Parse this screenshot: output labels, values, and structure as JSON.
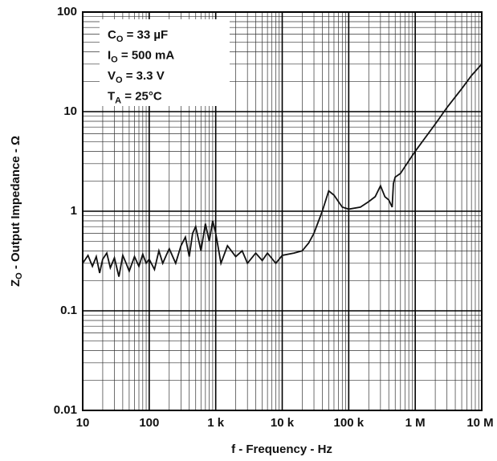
{
  "chart_data": {
    "type": "line",
    "xlabel": "f - Frequency - Hz",
    "ylabel": [
      "Z",
      "O",
      " - Output Impedance - Ω"
    ],
    "annotations": [
      [
        "C",
        "O",
        " = 33 µF"
      ],
      [
        "I",
        "O",
        " = 500 mA"
      ],
      [
        "V",
        "O",
        " = 3.3 V"
      ],
      [
        "T",
        "A",
        " = 25°C"
      ]
    ],
    "xlog": true,
    "ylog": true,
    "grid": true,
    "xlim": [
      10,
      10000000
    ],
    "ylim": [
      0.01,
      100
    ],
    "xticks": [
      10,
      100,
      {
        "value": 1000,
        "label": "1 k"
      },
      {
        "value": 10000,
        "label": "10 k"
      },
      {
        "value": 100000,
        "label": "100 k"
      },
      {
        "value": 1000000,
        "label": "1 M"
      },
      {
        "value": 10000000,
        "label": "10 M"
      }
    ],
    "yticks": [
      0.01,
      0.1,
      1,
      10,
      100
    ],
    "x": [
      10,
      12,
      14,
      16,
      18,
      20,
      23,
      26,
      30,
      35,
      40,
      45,
      50,
      60,
      70,
      80,
      90,
      100,
      120,
      140,
      160,
      180,
      200,
      250,
      300,
      350,
      400,
      450,
      500,
      600,
      700,
      800,
      900,
      1000,
      1200,
      1500,
      2000,
      2500,
      3000,
      4000,
      5000,
      6000,
      8000,
      10000,
      15000,
      20000,
      25000,
      30000,
      40000,
      50000,
      60000,
      70000,
      80000,
      100000,
      150000,
      200000,
      250000,
      300000,
      350000,
      400000,
      450000,
      470000,
      500000,
      600000,
      800000,
      1000000,
      2000000,
      3000000,
      5000000,
      7000000,
      10000000
    ],
    "series": [
      {
        "color": "#111111",
        "values": [
          0.3,
          0.36,
          0.28,
          0.35,
          0.24,
          0.33,
          0.38,
          0.27,
          0.34,
          0.22,
          0.36,
          0.3,
          0.25,
          0.35,
          0.28,
          0.37,
          0.3,
          0.33,
          0.26,
          0.4,
          0.3,
          0.36,
          0.42,
          0.3,
          0.45,
          0.55,
          0.35,
          0.6,
          0.7,
          0.4,
          0.75,
          0.5,
          0.8,
          0.6,
          0.3,
          0.45,
          0.35,
          0.4,
          0.3,
          0.38,
          0.32,
          0.38,
          0.3,
          0.36,
          0.38,
          0.4,
          0.48,
          0.6,
          1.0,
          1.6,
          1.45,
          1.25,
          1.1,
          1.05,
          1.1,
          1.25,
          1.4,
          1.8,
          1.4,
          1.3,
          1.1,
          1.9,
          2.2,
          2.4,
          3.2,
          4.0,
          7.5,
          11,
          17,
          23,
          30
        ]
      }
    ]
  }
}
